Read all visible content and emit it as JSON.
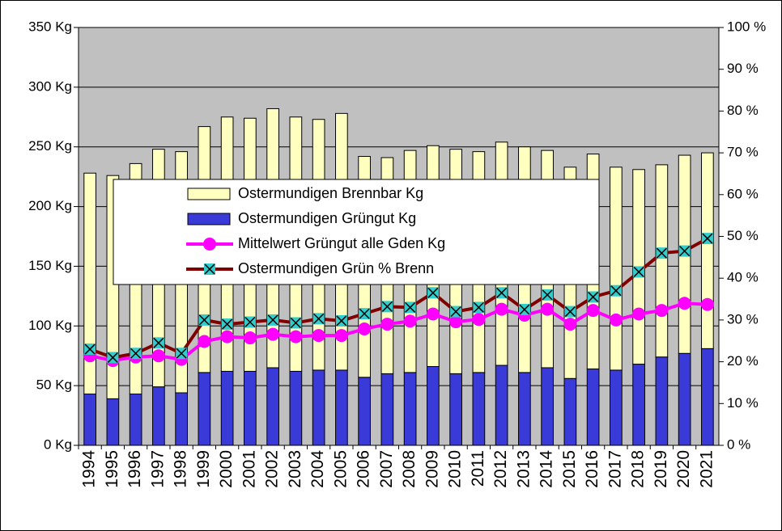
{
  "chart_data": {
    "type": "bar",
    "stacked": true,
    "categories": [
      "1994",
      "1995",
      "1996",
      "1997",
      "1998",
      "1999",
      "2000",
      "2001",
      "2002",
      "2003",
      "2004",
      "2005",
      "2006",
      "2007",
      "2008",
      "2009",
      "2010",
      "2011",
      "2012",
      "2013",
      "2014",
      "2015",
      "2016",
      "2017",
      "2018",
      "2019",
      "2020",
      "2021"
    ],
    "series": [
      {
        "name": "Ostermundigen Brennbar Kg",
        "type": "bar",
        "color": "#ffffc0",
        "values": [
          185,
          187,
          193,
          199,
          202,
          206,
          213,
          212,
          217,
          213,
          210,
          215,
          185,
          181,
          186,
          185,
          188,
          185,
          187,
          189,
          182,
          177,
          180,
          170,
          163,
          161,
          166,
          164
        ]
      },
      {
        "name": "Ostermundigen Grüngut Kg",
        "type": "bar",
        "color": "#3a3ad8",
        "values": [
          43,
          39,
          43,
          49,
          44,
          61,
          62,
          62,
          65,
          62,
          63,
          63,
          57,
          60,
          61,
          66,
          60,
          61,
          67,
          61,
          65,
          56,
          64,
          63,
          68,
          74,
          77,
          81
        ]
      },
      {
        "name": "Mittelwert Grüngut alle Gden Kg",
        "type": "line",
        "marker": "circle",
        "color": "#ff00ff",
        "values": [
          75,
          71,
          74,
          75,
          72,
          87,
          91,
          90,
          93,
          91,
          92,
          92,
          97.5,
          101.5,
          104,
          110,
          103.5,
          105.5,
          114,
          109,
          114,
          101.5,
          113,
          105,
          110,
          113,
          119,
          118
        ]
      },
      {
        "name": "Ostermundigen Grün % Brenn",
        "type": "line",
        "marker": "x-square",
        "color": "#800000",
        "marker_color": "#33cccc",
        "axis": "y2",
        "values": [
          23,
          21,
          22,
          24.5,
          22,
          30,
          29,
          29.5,
          30,
          29.3,
          30.3,
          29.8,
          31.5,
          33.2,
          33,
          36.5,
          32,
          33,
          36.5,
          32.5,
          36,
          32,
          35.5,
          37,
          41.5,
          46,
          46.5,
          49.5
        ]
      }
    ],
    "ylim": [
      0,
      350
    ],
    "yticks": [
      {
        "value": 0,
        "label": "0 Kg"
      },
      {
        "value": 50,
        "label": "50 Kg"
      },
      {
        "value": 100,
        "label": "100 Kg"
      },
      {
        "value": 150,
        "label": "150 Kg"
      },
      {
        "value": 200,
        "label": "200 Kg"
      },
      {
        "value": 250,
        "label": "250 Kg"
      },
      {
        "value": 300,
        "label": "300 Kg"
      },
      {
        "value": 350,
        "label": "350 Kg"
      }
    ],
    "y2lim": [
      0,
      100
    ],
    "y2ticks": [
      {
        "value": 0,
        "label": "0 %"
      },
      {
        "value": 10,
        "label": "10 %"
      },
      {
        "value": 20,
        "label": "20 %"
      },
      {
        "value": 30,
        "label": "30 %"
      },
      {
        "value": 40,
        "label": "40 %"
      },
      {
        "value": 50,
        "label": "50 %"
      },
      {
        "value": 60,
        "label": "60 %"
      },
      {
        "value": 70,
        "label": "70 %"
      },
      {
        "value": 80,
        "label": "80 %"
      },
      {
        "value": 90,
        "label": "90 %"
      },
      {
        "value": 100,
        "label": "100 %"
      }
    ],
    "grid": true,
    "plot_background": "#c0c0c0"
  }
}
